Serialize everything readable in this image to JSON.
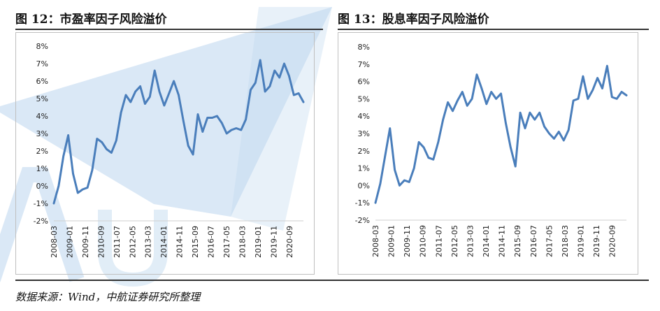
{
  "colors": {
    "line": "#4a7ebb",
    "watermark": "#bcd6ee"
  },
  "footer": {
    "source": "数据来源：Wind，中航证券研究所整理"
  },
  "chart_data": [
    {
      "type": "line",
      "title": "图 12：市盈率因子风险溢价",
      "ylim": [
        -0.02,
        0.08
      ],
      "y_ticks": [
        "8%",
        "7%",
        "6%",
        "5%",
        "4%",
        "3%",
        "2%",
        "1%",
        "0%",
        "-1%",
        "-2%"
      ],
      "x_tick_labels": [
        "2008-03",
        "2009-01",
        "2009-11",
        "2010-09",
        "2011-07",
        "2012-05",
        "2013-03",
        "2014-01",
        "2014-11",
        "2015-09",
        "2016-07",
        "2017-05",
        "2018-03",
        "2019-01",
        "2019-11",
        "2020-09"
      ],
      "series": [
        {
          "name": "市盈率因子风险溢价",
          "values": [
            -0.01,
            0.0,
            0.017,
            0.029,
            0.007,
            -0.004,
            -0.002,
            -0.001,
            0.009,
            0.027,
            0.025,
            0.021,
            0.019,
            0.026,
            0.042,
            0.052,
            0.048,
            0.054,
            0.057,
            0.047,
            0.051,
            0.066,
            0.054,
            0.046,
            0.053,
            0.06,
            0.052,
            0.037,
            0.023,
            0.018,
            0.041,
            0.031,
            0.039,
            0.039,
            0.04,
            0.036,
            0.03,
            0.032,
            0.033,
            0.032,
            0.038,
            0.055,
            0.059,
            0.072,
            0.054,
            0.057,
            0.066,
            0.062,
            0.07,
            0.063,
            0.052,
            0.053,
            0.048
          ]
        }
      ]
    },
    {
      "type": "line",
      "title": "图 13：股息率因子风险溢价",
      "ylim": [
        -0.02,
        0.08
      ],
      "y_ticks": [
        "8%",
        "7%",
        "6%",
        "5%",
        "4%",
        "3%",
        "2%",
        "1%",
        "0%",
        "-1%",
        "-2%"
      ],
      "x_tick_labels": [
        "2008-03",
        "2009-01",
        "2009-11",
        "2010-09",
        "2011-07",
        "2012-05",
        "2013-03",
        "2014-01",
        "2014-11",
        "2015-09",
        "2016-07",
        "2017-05",
        "2018-03",
        "2019-01",
        "2019-11",
        "2020-09"
      ],
      "series": [
        {
          "name": "股息率因子风险溢价",
          "values": [
            -0.01,
            0.001,
            0.017,
            0.033,
            0.009,
            0.0,
            0.003,
            0.002,
            0.01,
            0.025,
            0.022,
            0.016,
            0.015,
            0.025,
            0.038,
            0.048,
            0.043,
            0.049,
            0.054,
            0.046,
            0.05,
            0.064,
            0.056,
            0.047,
            0.054,
            0.05,
            0.053,
            0.036,
            0.022,
            0.011,
            0.042,
            0.033,
            0.042,
            0.038,
            0.042,
            0.034,
            0.03,
            0.027,
            0.031,
            0.026,
            0.032,
            0.049,
            0.05,
            0.063,
            0.05,
            0.055,
            0.062,
            0.056,
            0.069,
            0.051,
            0.05,
            0.054,
            0.052
          ]
        }
      ]
    }
  ]
}
